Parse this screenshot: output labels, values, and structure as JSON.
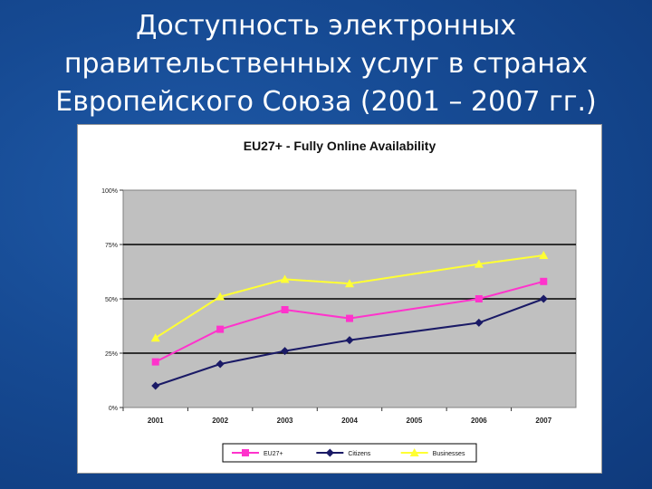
{
  "slide": {
    "title_lines": [
      "Доступность электронных",
      "правительственных услуг в странах",
      "Европейского Союза (2001 – 2007 гг.)"
    ]
  },
  "chart_data": {
    "type": "line",
    "title": "EU27+ - Fully Online Availability",
    "categories": [
      "2001",
      "2002",
      "2003",
      "2004",
      "2005",
      "2006",
      "2007"
    ],
    "ylim": [
      0,
      100
    ],
    "yticks": [
      "0%",
      "25%",
      "50%",
      "75%",
      "100%"
    ],
    "grid": true,
    "legend_position": "bottom",
    "series": [
      {
        "name": "EU27+",
        "color": "#ff33cc",
        "marker": "square",
        "values": [
          21,
          36,
          45,
          41,
          null,
          50,
          58
        ]
      },
      {
        "name": "Citizens",
        "color": "#1a1a66",
        "marker": "diamond",
        "values": [
          10,
          20,
          26,
          31,
          null,
          39,
          50
        ]
      },
      {
        "name": "Businesses",
        "color": "#ffff33",
        "marker": "triangle",
        "values": [
          32,
          51,
          59,
          57,
          null,
          66,
          70
        ]
      }
    ]
  }
}
